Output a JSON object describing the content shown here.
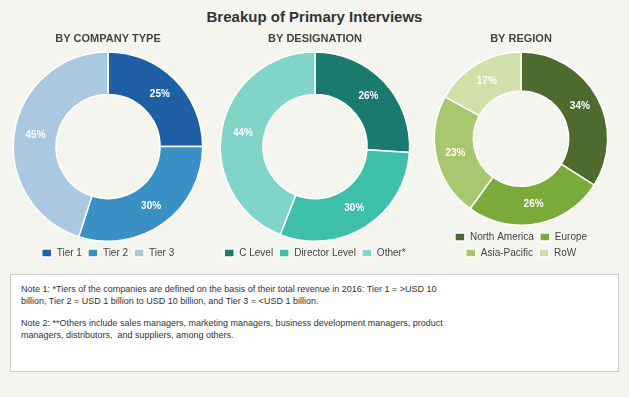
{
  "title": "Breakup of Primary Interviews",
  "annotations": [
    "Note 1: *Tiers of the companies are defined on the basis of their total revenue in 2016: Tier 1 = >USD 10\nbillion, Tier 2 = USD 1 billion to USD 10 billion, and Tier 3 = <USD 1 billion.",
    "Note 2: **Others include sales managers, marketing managers, business development managers, product\nmanagers, distributors,  and suppliers, among others."
  ],
  "chart_data": [
    {
      "type": "doughnut",
      "title": "BY COMPANY TYPE",
      "categories": [
        "Tier 1",
        "Tier 2",
        "Tier 3"
      ],
      "values": [
        25,
        30,
        45
      ],
      "value_labels": [
        "25%",
        "30%",
        "45%"
      ],
      "colors": [
        "#1f5fa6",
        "#3a8fc4",
        "#aac8e0"
      ],
      "data_labels": true,
      "legend": "bottom"
    },
    {
      "type": "doughnut",
      "title": "BY DESIGNATION",
      "categories": [
        "C Level",
        "Director Level",
        "Other*"
      ],
      "values": [
        26,
        30,
        44
      ],
      "value_labels": [
        "26%",
        "30%",
        "44%"
      ],
      "colors": [
        "#1a7a6e",
        "#3dbfaa",
        "#80d4c8"
      ],
      "data_labels": true,
      "legend": "bottom"
    },
    {
      "type": "doughnut",
      "title": "BY REGION",
      "categories": [
        "North America",
        "Europe",
        "Asia-Pacific",
        "RoW"
      ],
      "values": [
        34,
        26,
        23,
        17
      ],
      "value_labels": [
        "34%",
        "26%",
        "23%",
        "17%"
      ],
      "colors": [
        "#4d6b2e",
        "#7aaa3a",
        "#a8c870",
        "#d0e0a8"
      ],
      "data_labels": true,
      "legend": "bottom"
    }
  ]
}
